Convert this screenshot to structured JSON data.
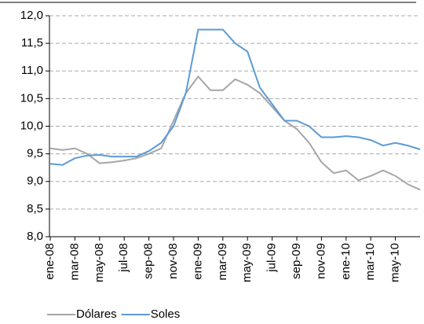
{
  "chart_data": {
    "type": "line",
    "categories": [
      "ene-08",
      null,
      "mar-08",
      null,
      "may-08",
      null,
      "jul-08",
      null,
      "sep-08",
      null,
      "nov-08",
      null,
      "ene-09",
      null,
      "mar-09",
      null,
      "may-09",
      null,
      "jul-09",
      null,
      "sep-09",
      null,
      "nov-09",
      null,
      "ene-10",
      null,
      "mar-10",
      null,
      "may-10",
      null,
      null
    ],
    "series": [
      {
        "name": "Dólares",
        "color": "#a6a6a6",
        "values": [
          9.6,
          9.57,
          9.6,
          9.5,
          9.33,
          9.35,
          9.38,
          9.42,
          9.5,
          9.6,
          10.1,
          10.6,
          10.9,
          10.65,
          10.65,
          10.85,
          10.75,
          10.6,
          10.35,
          10.1,
          9.95,
          9.7,
          9.35,
          9.15,
          9.2,
          9.02,
          9.1,
          9.2,
          9.1,
          8.95,
          8.85
        ]
      },
      {
        "name": "Soles",
        "color": "#5b9bd5",
        "values": [
          9.32,
          9.3,
          9.42,
          9.47,
          9.48,
          9.45,
          9.45,
          9.45,
          9.55,
          9.7,
          10.0,
          10.6,
          11.75,
          11.75,
          11.75,
          11.5,
          11.35,
          10.7,
          10.4,
          10.1,
          10.1,
          10.0,
          9.8,
          9.8,
          9.82,
          9.8,
          9.75,
          9.65,
          9.7,
          9.65,
          9.58
        ]
      }
    ],
    "ylim": [
      8,
      12
    ],
    "yticks": [
      {
        "value": 8,
        "label": "8,0"
      },
      {
        "value": 8.5,
        "label": "8,5"
      },
      {
        "value": 9,
        "label": "9,0"
      },
      {
        "value": 9.5,
        "label": "9,5"
      },
      {
        "value": 10,
        "label": "10,0"
      },
      {
        "value": 10.5,
        "label": "10,5"
      },
      {
        "value": 11,
        "label": "11,0"
      },
      {
        "value": 11.5,
        "label": "11,5"
      },
      {
        "value": 12,
        "label": "12,0"
      }
    ],
    "grid": true
  }
}
